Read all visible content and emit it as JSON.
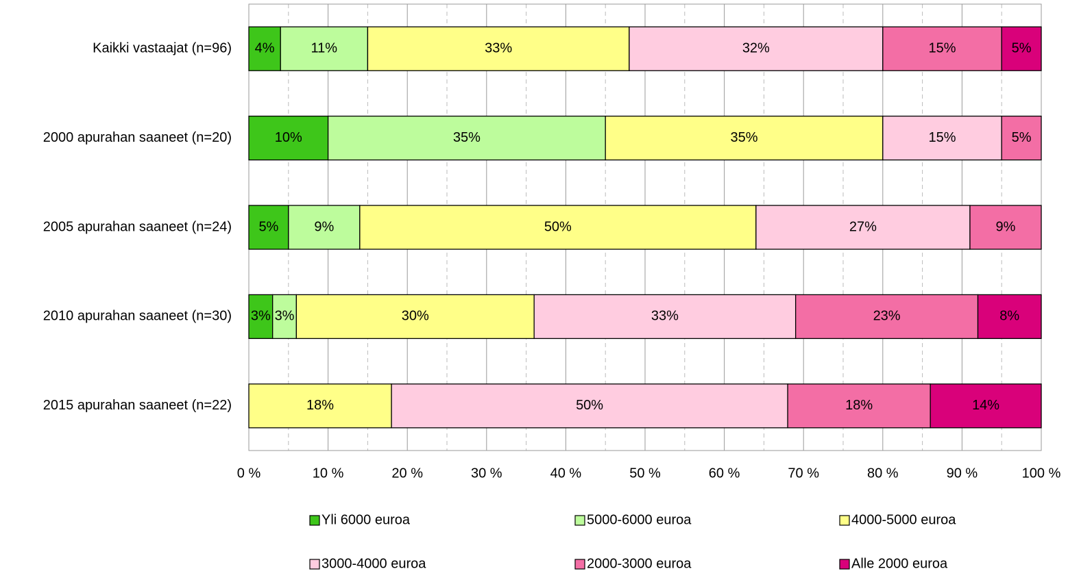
{
  "chart_data": {
    "type": "stacked_bar_horizontal",
    "categories": [
      "Kaikki vastaajat (n=96)",
      "2000 apurahan saaneet (n=20)",
      "2005 apurahan saaneet (n=24)",
      "2010 apurahan saaneet (n=30)",
      "2015 apurahan saaneet (n=22)"
    ],
    "series": [
      {
        "name": "Yli 6000 euroa",
        "color": "#3ec61a",
        "values": [
          4,
          10,
          5,
          3,
          null
        ],
        "value_labels": [
          "4%",
          "10%",
          "5%",
          "3%",
          null
        ]
      },
      {
        "name": "5000-6000 euroa",
        "color": "#bdfc9c",
        "values": [
          11,
          35,
          9,
          3,
          null
        ],
        "value_labels": [
          "11%",
          "35%",
          "9%",
          "3%",
          null
        ]
      },
      {
        "name": "4000-5000 euroa",
        "color": "#ffff88",
        "values": [
          33,
          35,
          50,
          30,
          18
        ],
        "value_labels": [
          "33%",
          "35%",
          "50%",
          "30%",
          "18%"
        ]
      },
      {
        "name": "3000-4000 euroa",
        "color": "#ffcce0",
        "values": [
          32,
          15,
          27,
          33,
          50
        ],
        "value_labels": [
          "32%",
          "15%",
          "27%",
          "33%",
          "50%"
        ]
      },
      {
        "name": "2000-3000 euroa",
        "color": "#f36ea5",
        "values": [
          15,
          5,
          9,
          23,
          18
        ],
        "value_labels": [
          "15%",
          "5%",
          "9%",
          "23%",
          "18%"
        ]
      },
      {
        "name": "Alle 2000 euroa",
        "color": "#d9017a",
        "values": [
          5,
          null,
          null,
          8,
          14
        ],
        "value_labels": [
          "5%",
          null,
          null,
          "8%",
          "14%"
        ]
      }
    ],
    "xlim": [
      0,
      100
    ],
    "xticks": [
      {
        "value": 0,
        "label": "0 %"
      },
      {
        "value": 10,
        "label": "10 %"
      },
      {
        "value": 20,
        "label": "20 %"
      },
      {
        "value": 30,
        "label": "30 %"
      },
      {
        "value": 40,
        "label": "40 %"
      },
      {
        "value": 50,
        "label": "50 %"
      },
      {
        "value": 60,
        "label": "60 %"
      },
      {
        "value": 70,
        "label": "70 %"
      },
      {
        "value": 80,
        "label": "80 %"
      },
      {
        "value": 90,
        "label": "90 %"
      },
      {
        "value": 100,
        "label": "100 %"
      }
    ],
    "xminor": [
      5,
      15,
      25,
      35,
      45,
      55,
      65,
      75,
      85,
      95
    ],
    "grid": true,
    "legend": "bottom"
  }
}
